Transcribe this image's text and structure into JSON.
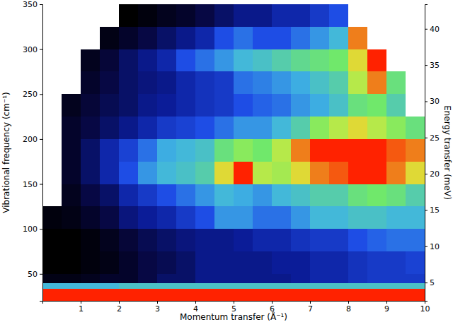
{
  "chart_data": {
    "type": "heatmap",
    "x_label": "Momentum transfer (Å⁻¹)",
    "y_label": "Vibrational frequency (cm⁻¹)",
    "y2_label": "Energy transfer (meV)",
    "xlim": [
      0,
      10
    ],
    "xticks": [
      1,
      2,
      3,
      4,
      5,
      6,
      7,
      8,
      9,
      10
    ],
    "ylim": [
      20,
      350
    ],
    "yticks": [
      50,
      100,
      150,
      200,
      250,
      300,
      350
    ],
    "y2lim": [
      2.48,
      43.39
    ],
    "y2ticks": [
      5,
      10,
      15,
      20,
      25,
      30,
      35,
      40
    ],
    "x_bins": [
      0,
      0.5,
      1,
      1.5,
      2,
      2.5,
      3,
      3.5,
      4,
      4.5,
      5,
      5.5,
      6,
      6.5,
      7,
      7.5,
      8,
      8.5,
      9,
      9.5,
      10
    ],
    "y_bins": [
      20,
      33,
      40,
      50,
      75,
      100,
      125,
      150,
      175,
      200,
      225,
      250,
      275,
      300,
      325,
      350
    ],
    "cells": [
      [
        0.95,
        0.95,
        0.95,
        0.95,
        0.95,
        0.95,
        0.95,
        0.95,
        0.95,
        0.95,
        0.95,
        0.95,
        0.95,
        0.95,
        0.95,
        0.95,
        0.95,
        0.95,
        0.95,
        0.95
      ],
      [
        0.6,
        0.6,
        0.6,
        0.6,
        0.62,
        0.62,
        0.62,
        0.62,
        0.62,
        0.62,
        0.62,
        0.62,
        0.62,
        0.62,
        0.62,
        0.62,
        0.62,
        0.62,
        0.62,
        0.62
      ],
      [
        0.1,
        0.1,
        0.12,
        0.15,
        0.15,
        0.2,
        0.25,
        0.25,
        0.3,
        0.3,
        0.3,
        0.3,
        0.3,
        0.32,
        0.35,
        0.35,
        0.38,
        0.4,
        0.4,
        0.4
      ],
      [
        0.05,
        0.05,
        0.08,
        0.1,
        0.15,
        0.2,
        0.22,
        0.25,
        0.3,
        0.3,
        0.3,
        0.3,
        0.32,
        0.32,
        0.35,
        0.35,
        0.38,
        0.4,
        0.4,
        0.42
      ],
      [
        0.05,
        0.05,
        0.08,
        0.12,
        0.18,
        0.22,
        0.25,
        0.28,
        0.3,
        0.3,
        0.32,
        0.35,
        0.35,
        0.38,
        0.4,
        0.4,
        0.45,
        0.48,
        0.5,
        0.5
      ],
      [
        0.08,
        0.1,
        0.15,
        0.2,
        0.28,
        0.32,
        0.35,
        0.4,
        0.45,
        0.55,
        0.55,
        0.5,
        0.5,
        0.55,
        0.6,
        0.6,
        0.62,
        0.62,
        0.6,
        0.6
      ],
      [
        null,
        0.12,
        0.2,
        0.25,
        0.35,
        0.4,
        0.45,
        0.5,
        0.55,
        0.6,
        0.58,
        0.55,
        0.6,
        0.62,
        0.65,
        0.65,
        0.7,
        0.72,
        0.7,
        0.65
      ],
      [
        null,
        0.15,
        0.25,
        0.35,
        0.45,
        0.55,
        0.6,
        0.62,
        0.65,
        0.85,
        0.95,
        0.8,
        0.78,
        0.85,
        0.9,
        0.92,
        0.95,
        0.95,
        0.9,
        0.85
      ],
      [
        null,
        0.15,
        0.25,
        0.35,
        0.42,
        0.5,
        0.58,
        0.6,
        0.62,
        0.7,
        0.75,
        0.72,
        0.8,
        0.9,
        0.95,
        0.95,
        0.95,
        0.95,
        0.92,
        0.9
      ],
      [
        null,
        0.15,
        0.2,
        0.25,
        0.3,
        0.35,
        0.4,
        0.42,
        0.45,
        0.5,
        0.55,
        0.55,
        0.6,
        0.65,
        0.75,
        0.8,
        0.85,
        0.8,
        0.75,
        0.7
      ],
      [
        null,
        0.12,
        0.18,
        0.22,
        0.25,
        0.3,
        0.32,
        0.35,
        0.38,
        0.4,
        0.45,
        0.48,
        0.5,
        0.55,
        0.58,
        0.62,
        0.7,
        0.72,
        0.65,
        null
      ],
      [
        null,
        null,
        0.15,
        0.2,
        0.25,
        0.28,
        0.3,
        0.35,
        0.38,
        0.4,
        0.5,
        0.52,
        0.55,
        0.58,
        0.62,
        0.65,
        0.8,
        0.9,
        0.7,
        null
      ],
      [
        null,
        null,
        0.12,
        0.18,
        0.25,
        0.3,
        0.35,
        0.45,
        0.5,
        0.55,
        0.6,
        0.62,
        0.65,
        0.68,
        0.7,
        0.72,
        0.85,
        0.95,
        null,
        null
      ],
      [
        null,
        null,
        null,
        0.1,
        0.15,
        0.2,
        0.25,
        0.3,
        0.35,
        0.45,
        0.5,
        0.45,
        0.45,
        0.5,
        0.55,
        0.6,
        0.9,
        null,
        null,
        null
      ],
      [
        null,
        null,
        null,
        null,
        0.05,
        0.08,
        0.12,
        0.15,
        0.2,
        0.25,
        0.3,
        0.3,
        0.35,
        0.35,
        0.4,
        0.45,
        null,
        null,
        null,
        null
      ]
    ]
  }
}
